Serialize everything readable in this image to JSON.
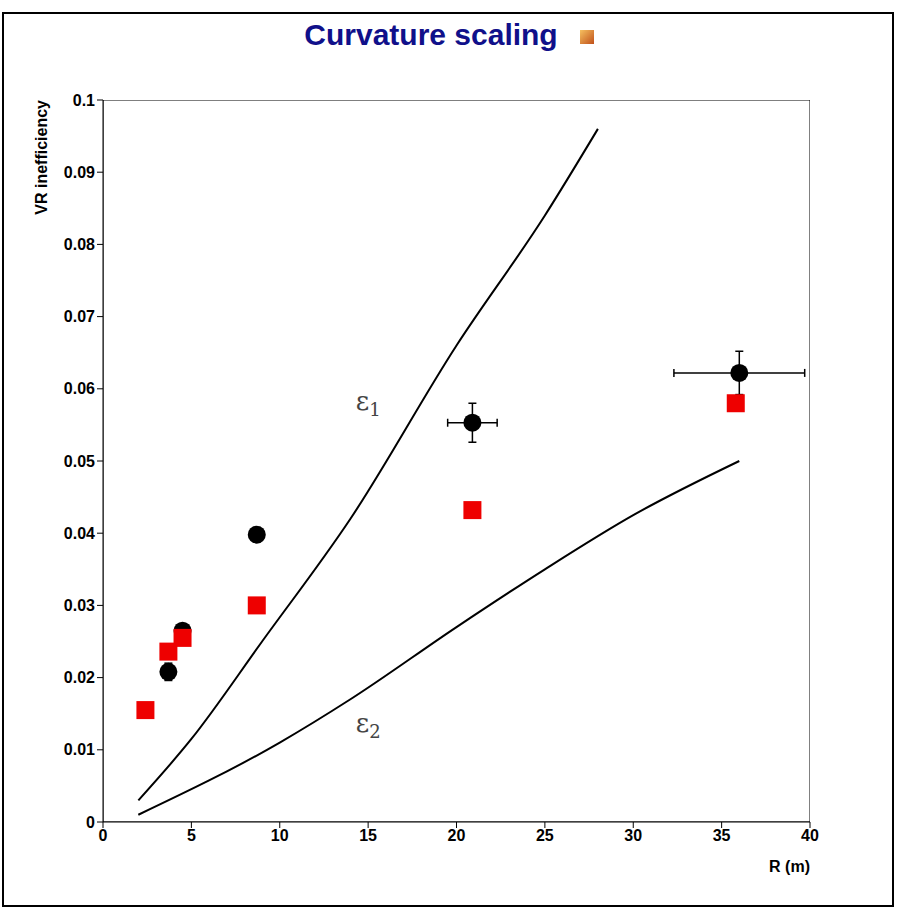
{
  "chart_data": {
    "type": "scatter",
    "title": "Curvature scaling",
    "x_label": "R (m)",
    "y_label": "VR inefficiency",
    "xlim": [
      0,
      40
    ],
    "xticks": [
      0,
      5,
      10,
      15,
      20,
      25,
      30,
      35,
      40
    ],
    "ylim": [
      0,
      0.1
    ],
    "yticks": [
      0,
      0.01,
      0.02,
      0.03,
      0.04,
      0.05,
      0.06,
      0.07,
      0.08,
      0.09,
      0.1
    ],
    "grid": false,
    "series": [
      {
        "type": "scatter",
        "color": "#000000",
        "marker": "circle",
        "x": [
          3.7,
          4.5,
          8.7,
          20.9,
          36
        ],
        "values": [
          0.0208,
          0.0265,
          0.0398,
          0.0553,
          0.0622
        ],
        "y_errors": [
          0.0012,
          0.0008,
          0.001,
          0.0027,
          0.003
        ],
        "x_errors": [
          null,
          null,
          null,
          1.4,
          3.7
        ]
      },
      {
        "type": "scatter",
        "color": "#ee0000",
        "marker": "square",
        "x": [
          2.4,
          3.7,
          4.5,
          8.7,
          20.9,
          35.8
        ],
        "values": [
          0.0155,
          0.0236,
          0.0255,
          0.03,
          0.0432,
          0.058
        ]
      },
      {
        "type": "line",
        "color": "#000000",
        "line_style": "solid",
        "x": [
          2,
          5,
          9,
          14,
          20,
          25,
          28
        ],
        "values": [
          0.003,
          0.0115,
          0.025,
          0.042,
          0.066,
          0.084,
          0.096
        ]
      },
      {
        "type": "line",
        "color": "#000000",
        "line_style": "solid",
        "x": [
          2,
          10,
          14,
          20,
          25,
          30,
          36
        ],
        "values": [
          0.001,
          0.011,
          0.017,
          0.027,
          0.035,
          0.0425,
          0.05
        ]
      }
    ],
    "annotations": [
      {
        "text": "ε1",
        "x": 15,
        "y": 0.058
      },
      {
        "text": "ε2",
        "x": 15,
        "y": 0.0135
      }
    ]
  }
}
